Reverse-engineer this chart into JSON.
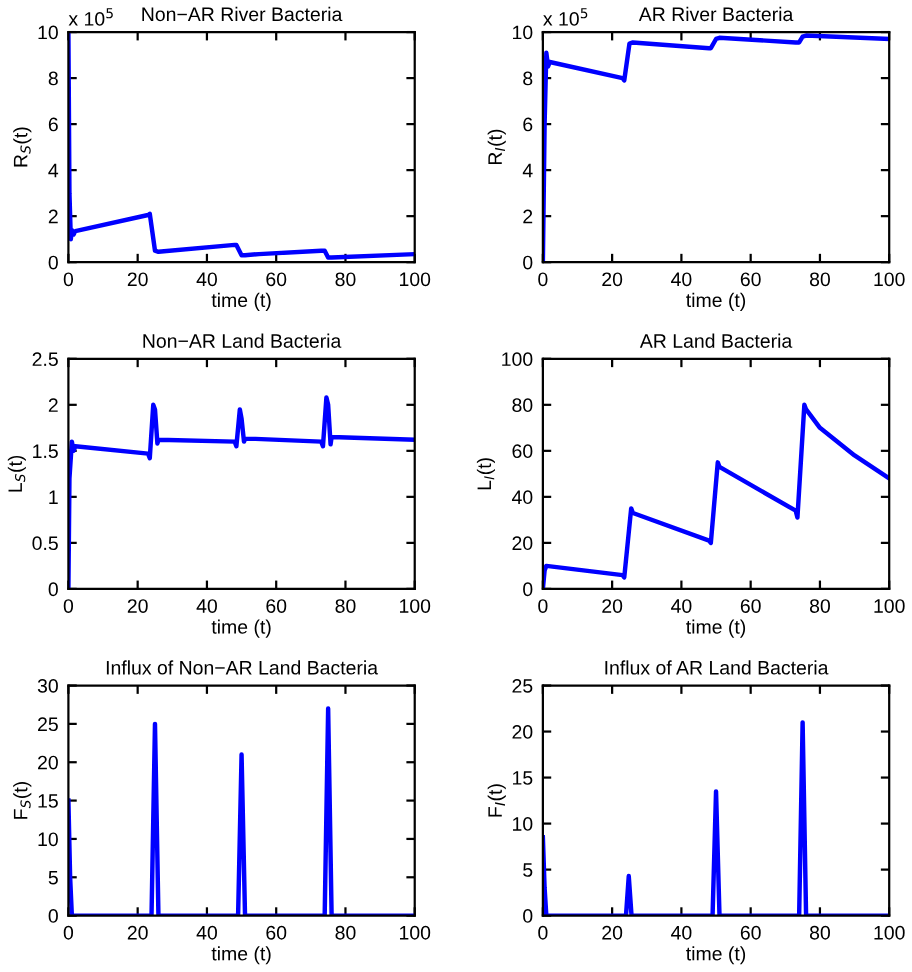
{
  "chart_data": [
    {
      "type": "line",
      "title": "Non−AR River Bacteria",
      "xlabel": "time (t)",
      "ylabel": "R$_{S}$(t)",
      "annotations": [
        "x 10$^{5}$"
      ],
      "x": [
        0,
        0.3,
        0.7,
        1,
        1.5,
        2,
        23,
        23.5,
        25,
        26,
        48,
        48.5,
        50,
        51,
        55,
        73,
        74,
        75,
        76,
        100
      ],
      "series": [
        {
          "color": "#0000ff",
          "values": [
            10,
            3,
            1.0,
            1.4,
            1.2,
            1.35,
            2.05,
            2.1,
            0.5,
            0.45,
            0.75,
            0.75,
            0.3,
            0.3,
            0.35,
            0.5,
            0.5,
            0.2,
            0.2,
            0.35
          ]
        }
      ],
      "xlim": [
        0,
        100
      ],
      "xticks": [
        0,
        20,
        40,
        60,
        80,
        100
      ],
      "ylim": [
        0,
        10
      ],
      "yticks": [
        0,
        2,
        4,
        6,
        8,
        10
      ],
      "grid": false,
      "legend": false
    },
    {
      "type": "line",
      "title": "AR River Bacteria",
      "xlabel": "time (t)",
      "ylabel": "R$_{I}$(t)",
      "annotations": [
        "x 10$^{5}$"
      ],
      "x": [
        0,
        0.5,
        1,
        1.5,
        2,
        23,
        23.5,
        25,
        26,
        48,
        48.5,
        50,
        51,
        73,
        74,
        75,
        76,
        100
      ],
      "series": [
        {
          "color": "#0000ff",
          "values": [
            0,
            6,
            9.1,
            8.5,
            8.7,
            8.0,
            7.9,
            9.5,
            9.55,
            9.3,
            9.3,
            9.7,
            9.75,
            9.55,
            9.55,
            9.8,
            9.85,
            9.7
          ]
        }
      ],
      "xlim": [
        0,
        100
      ],
      "xticks": [
        0,
        20,
        40,
        60,
        80,
        100
      ],
      "ylim": [
        0,
        10
      ],
      "yticks": [
        0,
        2,
        4,
        6,
        8,
        10
      ],
      "grid": false,
      "legend": false
    },
    {
      "type": "line",
      "title": "Non−AR Land Bacteria",
      "xlabel": "time (t)",
      "ylabel": "L$_{S}$(t)",
      "x": [
        0,
        0.3,
        1,
        1.5,
        2,
        23,
        23.5,
        24.5,
        25,
        25.7,
        26,
        48,
        48.5,
        49.5,
        50,
        50.7,
        51,
        54,
        73,
        73.5,
        74.5,
        75,
        75.7,
        76,
        100
      ],
      "series": [
        {
          "color": "#0000ff",
          "values": [
            0,
            1.2,
            1.6,
            1.5,
            1.55,
            1.47,
            1.42,
            2.0,
            1.95,
            1.58,
            1.62,
            1.6,
            1.55,
            1.95,
            1.85,
            1.6,
            1.63,
            1.63,
            1.6,
            1.55,
            2.08,
            2.0,
            1.57,
            1.65,
            1.62
          ]
        }
      ],
      "xlim": [
        0,
        100
      ],
      "xticks": [
        0,
        20,
        40,
        60,
        80,
        100
      ],
      "ylim": [
        0,
        2.5
      ],
      "yticks": [
        0,
        0.5,
        1,
        1.5,
        2,
        2.5
      ],
      "grid": false,
      "legend": false
    },
    {
      "type": "line",
      "title": "AR Land Bacteria",
      "xlabel": "time (t)",
      "ylabel": "L$_{I}$(t)",
      "x": [
        0,
        0.5,
        1,
        23,
        23.5,
        25.5,
        26,
        48,
        48.5,
        50.5,
        51,
        73,
        73.5,
        75.5,
        76,
        80,
        90,
        100
      ],
      "series": [
        {
          "color": "#0000ff",
          "values": [
            0,
            8,
            10,
            6,
            5,
            35,
            33,
            21,
            20,
            55,
            53,
            34,
            31,
            80,
            78,
            70,
            58,
            48
          ]
        }
      ],
      "xlim": [
        0,
        100
      ],
      "xticks": [
        0,
        20,
        40,
        60,
        80,
        100
      ],
      "ylim": [
        0,
        100
      ],
      "yticks": [
        0,
        20,
        40,
        60,
        80,
        100
      ],
      "grid": false,
      "legend": false
    },
    {
      "type": "line",
      "title": "Influx of Non−AR Land Bacteria",
      "xlabel": "time (t)",
      "ylabel": "F$_{S}$(t)",
      "x": [
        0,
        0.5,
        1,
        24,
        25,
        26,
        49,
        50,
        51,
        74,
        75,
        76,
        100
      ],
      "series": [
        {
          "color": "#0000ff",
          "values": [
            15,
            5,
            0,
            0,
            25,
            0,
            0,
            21,
            0,
            0,
            27,
            0,
            0
          ]
        }
      ],
      "xlim": [
        0,
        100
      ],
      "xticks": [
        0,
        20,
        40,
        60,
        80,
        100
      ],
      "ylim": [
        0,
        30
      ],
      "yticks": [
        0,
        5,
        10,
        15,
        20,
        25,
        30
      ],
      "grid": false,
      "legend": false
    },
    {
      "type": "line",
      "title": "Influx of AR Land Bacteria",
      "xlabel": "time (t)",
      "ylabel": "F$_{I}$(t)",
      "x": [
        0,
        0.5,
        1,
        24,
        24.8,
        25.6,
        49,
        50,
        51,
        74,
        75,
        76,
        100
      ],
      "series": [
        {
          "color": "#0000ff",
          "values": [
            8.5,
            3,
            0,
            0,
            4.3,
            0,
            0,
            13.5,
            0,
            0,
            21,
            0,
            0
          ]
        }
      ],
      "xlim": [
        0,
        100
      ],
      "xticks": [
        0,
        20,
        40,
        60,
        80,
        100
      ],
      "ylim": [
        0,
        25
      ],
      "yticks": [
        0,
        5,
        10,
        15,
        20,
        25
      ],
      "grid": false,
      "legend": false
    }
  ]
}
